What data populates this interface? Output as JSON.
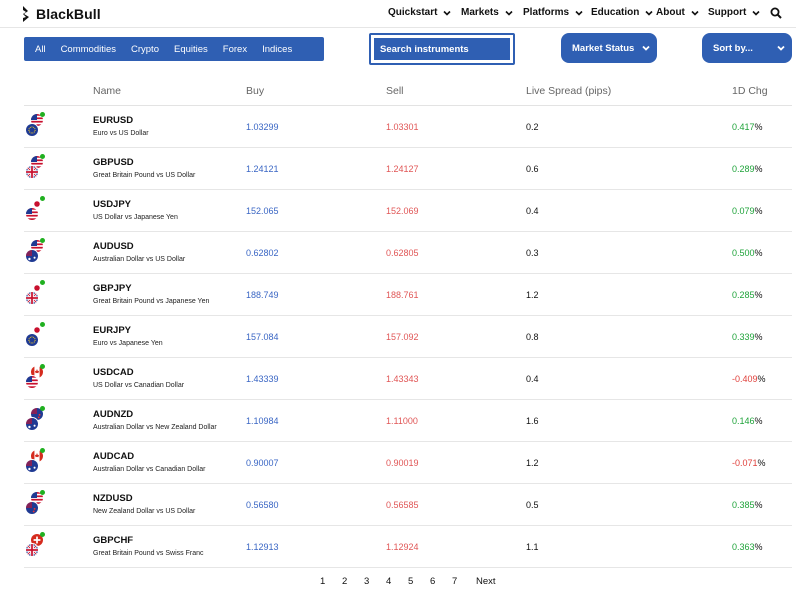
{
  "header": {
    "logo_text": "BlackBull",
    "nav": [
      {
        "label": "Quickstart"
      },
      {
        "label": "Markets"
      },
      {
        "label": "Platforms"
      },
      {
        "label": "Education"
      },
      {
        "label": "About"
      },
      {
        "label": "Support"
      }
    ]
  },
  "filters": {
    "tabs": [
      "All",
      "Commodities",
      "Crypto",
      "Equities",
      "Forex",
      "Indices"
    ],
    "search_placeholder": "Search instruments",
    "market_status": "Market Status",
    "sort_by": "Sort by..."
  },
  "colors": {
    "accent": "#2f5fb3",
    "buy": "#3a66c4",
    "sell": "#e05656",
    "positive": "#1fa33a",
    "negative": "#e0413c"
  },
  "table": {
    "headers": {
      "name": "Name",
      "buy": "Buy",
      "sell": "Sell",
      "spread": "Live Spread (pips)",
      "change": "1D Chg"
    },
    "rows": [
      {
        "symbol": "EURUSD",
        "desc": "Euro vs US Dollar",
        "buy": "1.03299",
        "sell": "1.03301",
        "spread": "0.2",
        "chg": "0.417",
        "dir": "pos",
        "front": "eu-flag-icon",
        "back": "us-flag-icon"
      },
      {
        "symbol": "GBPUSD",
        "desc": "Great Britain Pound vs US Dollar",
        "buy": "1.24121",
        "sell": "1.24127",
        "spread": "0.6",
        "chg": "0.289",
        "dir": "pos",
        "front": "uk-flag-icon",
        "back": "us-flag-icon"
      },
      {
        "symbol": "USDJPY",
        "desc": "US Dollar vs Japanese Yen",
        "buy": "152.065",
        "sell": "152.069",
        "spread": "0.4",
        "chg": "0.079",
        "dir": "pos",
        "front": "us-flag-icon",
        "back": "jp-flag-icon"
      },
      {
        "symbol": "AUDUSD",
        "desc": "Australian Dollar vs US Dollar",
        "buy": "0.62802",
        "sell": "0.62805",
        "spread": "0.3",
        "chg": "0.500",
        "dir": "pos",
        "front": "au-flag-icon",
        "back": "us-flag-icon"
      },
      {
        "symbol": "GBPJPY",
        "desc": "Great Britain Pound vs Japanese Yen",
        "buy": "188.749",
        "sell": "188.761",
        "spread": "1.2",
        "chg": "0.285",
        "dir": "pos",
        "front": "uk-flag-icon",
        "back": "jp-flag-icon"
      },
      {
        "symbol": "EURJPY",
        "desc": "Euro vs Japanese Yen",
        "buy": "157.084",
        "sell": "157.092",
        "spread": "0.8",
        "chg": "0.339",
        "dir": "pos",
        "front": "eu-flag-icon",
        "back": "jp-flag-icon"
      },
      {
        "symbol": "USDCAD",
        "desc": "US Dollar vs Canadian Dollar",
        "buy": "1.43339",
        "sell": "1.43343",
        "spread": "0.4",
        "chg": "-0.409",
        "dir": "neg",
        "front": "us-flag-icon",
        "back": "ca-flag-icon"
      },
      {
        "symbol": "AUDNZD",
        "desc": "Australian Dollar vs New Zealand Dollar",
        "buy": "1.10984",
        "sell": "1.11000",
        "spread": "1.6",
        "chg": "0.146",
        "dir": "pos",
        "front": "au-flag-icon",
        "back": "nz-flag-icon"
      },
      {
        "symbol": "AUDCAD",
        "desc": "Australian Dollar vs Canadian Dollar",
        "buy": "0.90007",
        "sell": "0.90019",
        "spread": "1.2",
        "chg": "-0.071",
        "dir": "neg",
        "front": "au-flag-icon",
        "back": "ca-flag-icon"
      },
      {
        "symbol": "NZDUSD",
        "desc": "New Zealand Dollar vs US Dollar",
        "buy": "0.56580",
        "sell": "0.56585",
        "spread": "0.5",
        "chg": "0.385",
        "dir": "pos",
        "front": "nz-flag-icon",
        "back": "us-flag-icon"
      },
      {
        "symbol": "GBPCHF",
        "desc": "Great Britain Pound vs Swiss Franc",
        "buy": "1.12913",
        "sell": "1.12924",
        "spread": "1.1",
        "chg": "0.363",
        "dir": "pos",
        "front": "uk-flag-icon",
        "back": "ch-flag-icon"
      }
    ],
    "percent_sign": "%"
  },
  "pagination": {
    "pages": [
      "1",
      "2",
      "3",
      "4",
      "5",
      "6",
      "7"
    ],
    "next_label": "Next"
  }
}
